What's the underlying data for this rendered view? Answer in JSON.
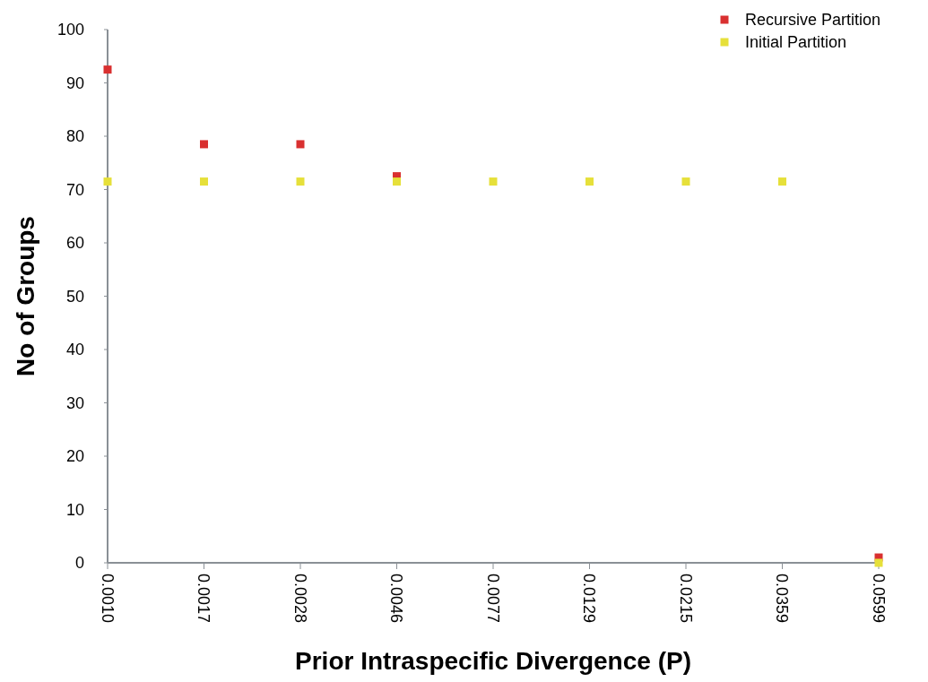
{
  "chart_data": {
    "type": "scatter",
    "xlabel": "Prior Intraspecific Divergence (P)",
    "ylabel": "No of Groups",
    "categories": [
      "0.0010",
      "0.0017",
      "0.0028",
      "0.0046",
      "0.0077",
      "0.0129",
      "0.0215",
      "0.0359",
      "0.0599"
    ],
    "series": [
      {
        "name": "Recursive Partition",
        "color": "#d93030",
        "values": [
          92.5,
          78.5,
          78.5,
          72.5,
          null,
          null,
          null,
          null,
          1
        ]
      },
      {
        "name": "Initial Partition",
        "color": "#e6e03a",
        "values": [
          71.5,
          71.5,
          71.5,
          71.5,
          71.5,
          71.5,
          71.5,
          71.5,
          0
        ]
      }
    ],
    "ylim": [
      0,
      100
    ],
    "yticks": [
      0,
      10,
      20,
      30,
      40,
      50,
      60,
      70,
      80,
      90,
      100
    ],
    "grid": false,
    "legend": "top right",
    "marker": "square"
  }
}
